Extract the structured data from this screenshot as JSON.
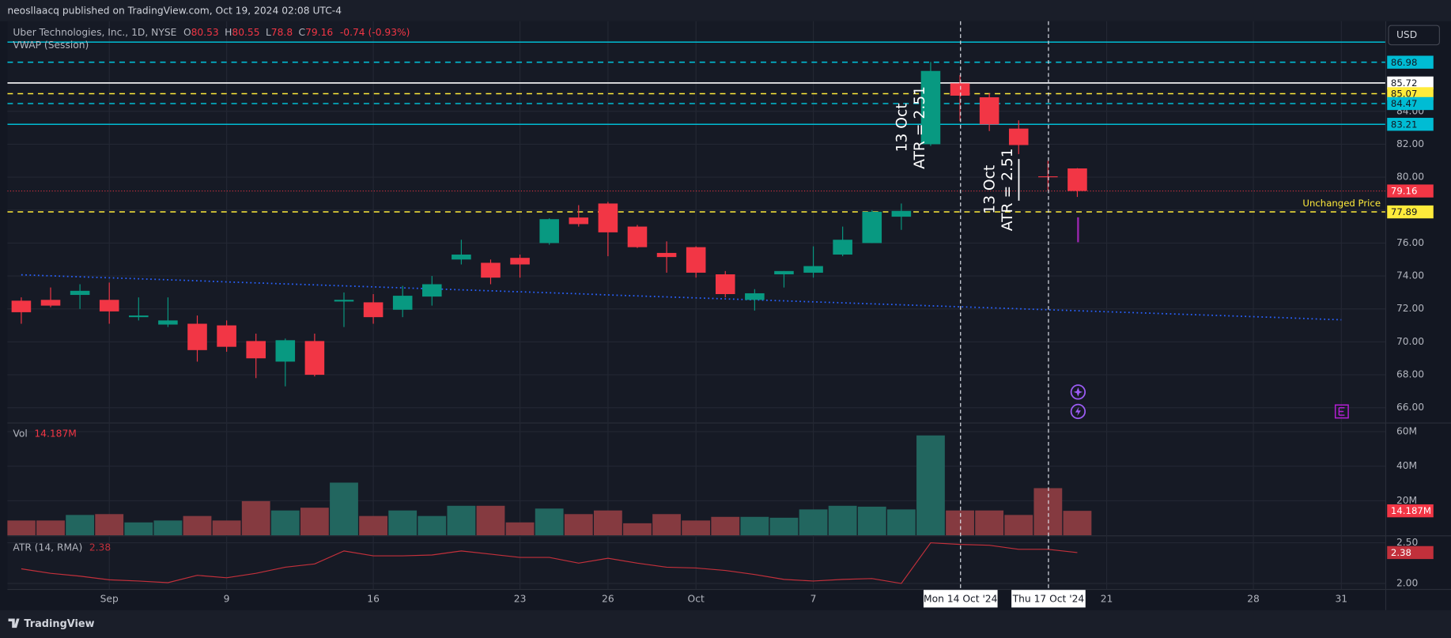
{
  "header": {
    "published": "neosllaacq published on TradingView.com, Oct 19, 2024 02:08 UTC-4"
  },
  "footer": {
    "brand": "TradingView"
  },
  "currency": "USD",
  "crosshair_dates": [
    "Mon 14 Oct '24",
    "Thu 17 Oct '24"
  ],
  "annotations": [
    {
      "date": "13 Oct",
      "text": "ATR = 2.51"
    },
    {
      "date": "13 Oct",
      "text": "ATR = 2.51"
    }
  ],
  "chart_data": [
    {
      "type": "candlestick",
      "title": "Uber Technologies, Inc., 1D, NYSE",
      "ohlc_legend": [
        {
          "label": "O",
          "value": 80.53
        },
        {
          "label": "H",
          "value": 80.55
        },
        {
          "label": "L",
          "value": 78.8
        },
        {
          "label": "C",
          "value": 79.16
        }
      ],
      "change": "-0.74 (-0.93%)",
      "indicator": "VWAP (Session)",
      "categories": [
        null,
        null,
        null,
        "Sep",
        null,
        null,
        null,
        "9",
        null,
        null,
        null,
        null,
        "16",
        null,
        null,
        null,
        null,
        "23",
        null,
        null,
        "26",
        null,
        null,
        "Oct",
        null,
        null,
        null,
        "7",
        null,
        null,
        null,
        null,
        null,
        null,
        null,
        null,
        null,
        "21",
        null,
        null,
        null,
        null,
        "28",
        null,
        null,
        "31"
      ],
      "open": [
        72.5,
        72.55,
        72.85,
        72.55,
        71.5,
        71.05,
        71.1,
        71.0,
        70.05,
        68.8,
        70.05,
        72.45,
        72.4,
        71.95,
        72.75,
        75.0,
        74.8,
        75.1,
        76.0,
        77.55,
        78.4,
        77.0,
        75.4,
        75.75,
        74.1,
        72.55,
        74.1,
        74.2,
        75.3,
        76.0,
        77.6,
        82.0,
        85.7,
        84.85,
        82.95,
        80.05,
        80.53,
        null,
        null,
        null,
        null,
        null,
        null,
        null,
        null,
        null
      ],
      "high": [
        72.7,
        73.3,
        73.5,
        73.6,
        72.7,
        72.7,
        71.6,
        71.3,
        70.5,
        70.2,
        70.5,
        73.0,
        72.9,
        73.4,
        74.0,
        76.2,
        75.0,
        75.3,
        77.5,
        78.3,
        78.5,
        77.1,
        76.1,
        75.8,
        74.3,
        73.2,
        74.3,
        75.8,
        77.0,
        78.0,
        78.4,
        87.0,
        86.2,
        85.1,
        83.45,
        81.0,
        80.55,
        null,
        null,
        null,
        null,
        null,
        null,
        null,
        null,
        null
      ],
      "low": [
        71.1,
        72.1,
        72.0,
        71.1,
        71.3,
        70.9,
        68.8,
        69.4,
        67.8,
        67.3,
        67.9,
        70.9,
        71.1,
        71.5,
        72.2,
        74.7,
        73.5,
        73.9,
        75.9,
        77.0,
        75.2,
        75.7,
        74.2,
        73.9,
        72.7,
        71.9,
        73.3,
        73.9,
        75.2,
        76.0,
        76.8,
        81.9,
        83.4,
        82.8,
        81.4,
        79.2,
        78.8,
        null,
        null,
        null,
        null,
        null,
        null,
        null,
        null,
        null
      ],
      "close": [
        71.8,
        72.2,
        73.1,
        71.85,
        71.6,
        71.3,
        69.5,
        69.7,
        69.0,
        70.1,
        68.0,
        72.55,
        71.5,
        72.8,
        73.5,
        75.3,
        73.9,
        74.7,
        77.45,
        77.15,
        76.65,
        75.75,
        75.15,
        74.2,
        72.9,
        72.95,
        74.3,
        74.6,
        76.2,
        77.9,
        77.95,
        86.45,
        84.95,
        83.2,
        81.95,
        80.0,
        79.16,
        null,
        null,
        null,
        null,
        null,
        null,
        null,
        null,
        null
      ],
      "up_color": "#089981",
      "down_color": "#f23645",
      "vwap": {
        "color": "#2962ff",
        "values": [
          74.07,
          74.01,
          73.95,
          73.89,
          73.83,
          73.77,
          73.71,
          73.64,
          73.58,
          73.52,
          73.46,
          73.4,
          73.34,
          73.28,
          73.22,
          73.16,
          73.1,
          73.04,
          72.98,
          72.92,
          72.85,
          72.79,
          72.73,
          72.67,
          72.61,
          72.55,
          72.49,
          72.43,
          72.37,
          72.31,
          72.25,
          72.19,
          72.13,
          72.07,
          72.01,
          71.95,
          71.89,
          71.83,
          71.77,
          71.71,
          71.65,
          71.59,
          71.53,
          71.47,
          71.4,
          71.34
        ]
      },
      "levels": [
        {
          "value": 88.2,
          "color": "#00bcd4",
          "style": "solid",
          "axis_label": false
        },
        {
          "value": 86.98,
          "color": "#00bcd4",
          "style": "dashed",
          "axis_label": true
        },
        {
          "value": 85.72,
          "color": "#ffffff",
          "style": "solid",
          "axis_label": true
        },
        {
          "value": 85.07,
          "color": "#ffeb3b",
          "style": "dashed",
          "axis_label": true
        },
        {
          "value": 84.47,
          "color": "#00bcd4",
          "style": "dashed",
          "axis_label": true
        },
        {
          "value": 83.21,
          "color": "#00bcd4",
          "style": "solid",
          "axis_label": true
        },
        {
          "value": 77.89,
          "color": "#ffeb3b",
          "style": "dashed",
          "axis_label": true,
          "text": "Unchanged Price"
        }
      ],
      "last_price": {
        "value": 79.16,
        "color": "#f23645"
      },
      "ylim": [
        65.1,
        89.41
      ],
      "yticks": [
        {
          "value": 66,
          "label": "66.00"
        },
        {
          "value": 68,
          "label": "68.00"
        },
        {
          "value": 70,
          "label": "70.00"
        },
        {
          "value": 72,
          "label": "72.00"
        },
        {
          "value": 74,
          "label": "74.00"
        },
        {
          "value": 76,
          "label": "76.00"
        },
        {
          "value": 78,
          "label": "78.00"
        },
        {
          "value": 80,
          "label": "80.00"
        },
        {
          "value": 82,
          "label": "82.00"
        },
        {
          "value": 84,
          "label": "84.00"
        }
      ],
      "grid": true
    },
    {
      "type": "bar",
      "title": "Vol",
      "values": [
        8.6,
        8.6,
        11.8,
        12.3,
        7.5,
        8.6,
        11.2,
        8.6,
        19.8,
        14.4,
        16.0,
        30.5,
        11.2,
        14.4,
        11.2,
        17.1,
        17.1,
        7.5,
        15.5,
        12.3,
        14.4,
        7.0,
        12.3,
        8.6,
        10.7,
        10.7,
        10.2,
        15.0,
        17.1,
        16.6,
        15.0,
        57.8,
        14.4,
        14.4,
        11.8,
        27.3,
        14.187
      ],
      "up_color": "#22665f",
      "down_color": "#853a40",
      "last_value": {
        "value": 14.187,
        "label": "14.187M",
        "color": "#f23645"
      },
      "ylim": [
        0,
        64.7
      ],
      "yticks": [
        {
          "value": 20,
          "label": "20M"
        },
        {
          "value": 40,
          "label": "40M"
        },
        {
          "value": 60,
          "label": "60M"
        }
      ]
    },
    {
      "type": "line",
      "title": "ATR (14, RMA)",
      "values": [
        2.18,
        2.125,
        2.09,
        2.045,
        2.03,
        2.01,
        2.1,
        2.07,
        2.125,
        2.2,
        2.24,
        2.4,
        2.34,
        2.34,
        2.35,
        2.4,
        2.36,
        2.32,
        2.32,
        2.25,
        2.31,
        2.25,
        2.2,
        2.19,
        2.16,
        2.11,
        2.05,
        2.03,
        2.05,
        2.06,
        2.0,
        2.5,
        2.48,
        2.47,
        2.42,
        2.42,
        2.38
      ],
      "color": "#c2303b",
      "last_value": {
        "value": 2.38,
        "color": "#c2303b"
      },
      "ylim": [
        1.932,
        2.58
      ],
      "yticks": [
        {
          "value": 2.5,
          "label": "2.50"
        },
        {
          "value": 2,
          "label": "2.00"
        }
      ]
    }
  ]
}
